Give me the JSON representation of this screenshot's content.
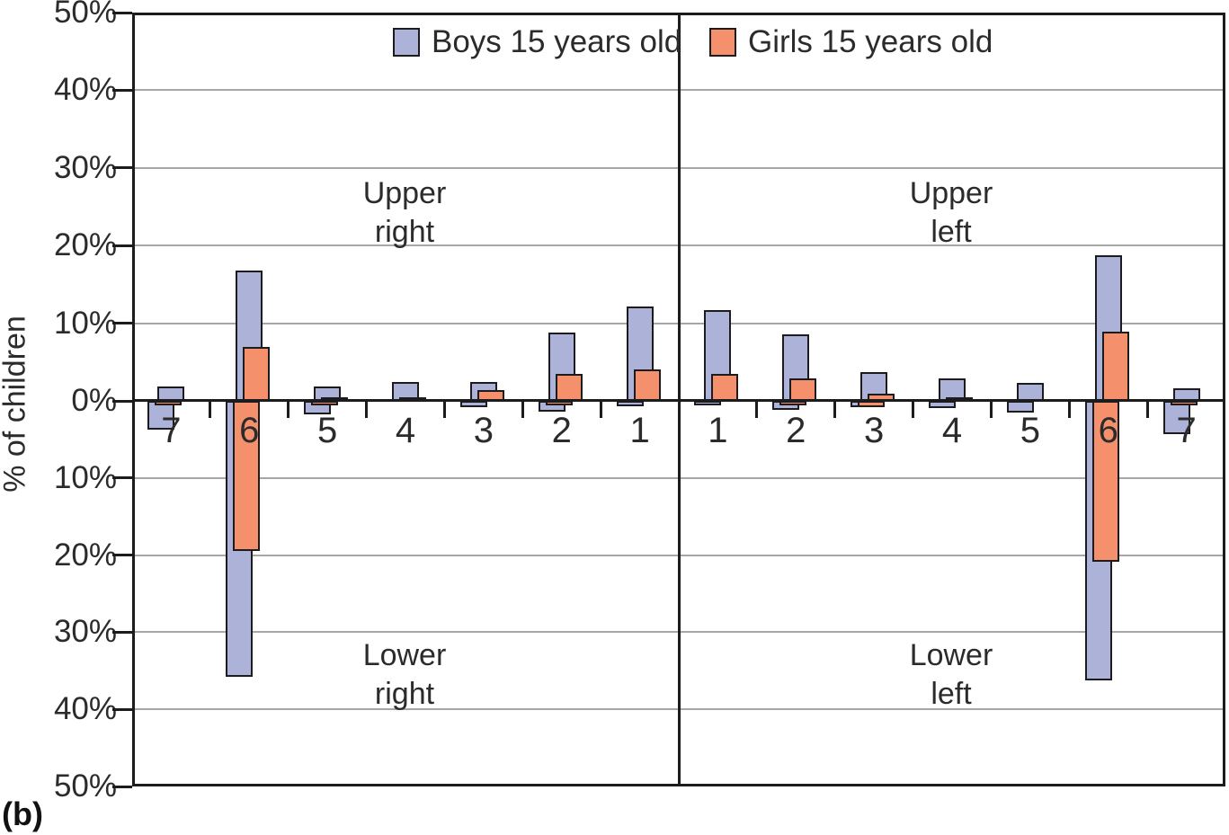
{
  "figure_label": "(b)",
  "y_axis": {
    "title": "% of children",
    "tick_labels": [
      "50%",
      "40%",
      "30%",
      "20%",
      "10%",
      "0%",
      "10%",
      "20%",
      "30%",
      "40%",
      "50%"
    ]
  },
  "legend": {
    "items": [
      {
        "label": "Boys 15 years old",
        "color": "#adb2d8"
      },
      {
        "label": "Girls 15 years old",
        "color": "#f5906c"
      }
    ]
  },
  "quadrants": [
    {
      "id": "upper-right",
      "line1": "Upper",
      "line2": "right"
    },
    {
      "id": "upper-left",
      "line1": "Upper",
      "line2": "left"
    },
    {
      "id": "lower-right",
      "line1": "Lower",
      "line2": "right"
    },
    {
      "id": "lower-left",
      "line1": "Lower",
      "line2": "left"
    }
  ],
  "chart_data": {
    "type": "bar",
    "title": "",
    "ylabel": "% of children",
    "units": "percent of children",
    "ylim": [
      -50,
      50
    ],
    "grid": true,
    "gridline_step_pct": 10,
    "legend_position": "top-inside",
    "series_names": [
      "Boys 15 years old",
      "Girls 15 years old"
    ],
    "positive_direction_meaning": "upper jaw",
    "negative_direction_meaning": "lower jaw",
    "halves": [
      {
        "side": "right",
        "quadrant_upper": "Upper right",
        "quadrant_lower": "Lower right",
        "teeth": [
          "7",
          "6",
          "5",
          "4",
          "3",
          "2",
          "1"
        ],
        "boys_upper_pct": [
          1.8,
          16.8,
          1.8,
          2.4,
          2.4,
          8.8,
          12.2
        ],
        "girls_upper_pct": [
          0,
          7.0,
          0.3,
          0.4,
          1.4,
          3.5,
          4.0
        ],
        "boys_lower_pct": [
          -3.7,
          -35.8,
          -1.8,
          0,
          -0.8,
          -1.4,
          -0.7
        ],
        "girls_lower_pct": [
          -0.5,
          -19.5,
          -0.3,
          0,
          0,
          -0.5,
          0
        ]
      },
      {
        "side": "left",
        "quadrant_upper": "Upper left",
        "quadrant_lower": "Lower left",
        "teeth": [
          "1",
          "2",
          "3",
          "4",
          "5",
          "6",
          "7"
        ],
        "boys_upper_pct": [
          11.7,
          8.6,
          3.7,
          2.9,
          2.3,
          18.7,
          1.6
        ],
        "girls_upper_pct": [
          3.5,
          2.9,
          0.9,
          0.4,
          0,
          8.9,
          0
        ],
        "boys_lower_pct": [
          -0.5,
          -1.2,
          -0.8,
          -0.9,
          -1.5,
          -36.3,
          -4.3
        ],
        "girls_lower_pct": [
          0,
          -0.6,
          -0.8,
          0,
          0,
          -20.9,
          -0.5
        ]
      }
    ],
    "colors": {
      "boys": "#adb2d8",
      "girls": "#f5906c",
      "outline": "#1c1c1e",
      "gridline": "#a6a6a6",
      "axis": "#1c1c1e",
      "background": "#ffffff"
    }
  }
}
